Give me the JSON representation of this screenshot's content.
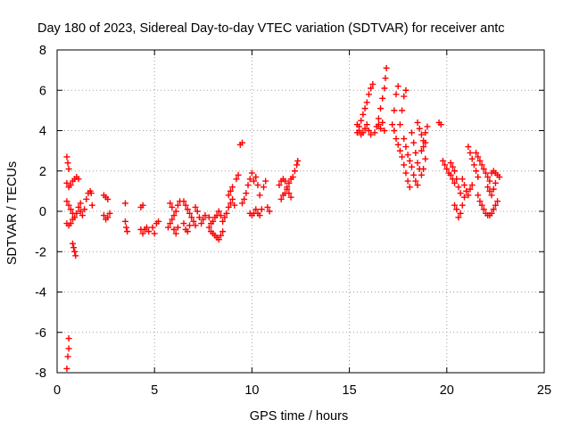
{
  "chart_data": {
    "type": "scatter",
    "title": "Day 180 of 2023, Sidereal Day-to-day VTEC variation (SDTVAR) for receiver antc",
    "xlabel": "GPS time / hours",
    "ylabel": "SDTVAR / TECUs",
    "xlim": [
      0,
      25
    ],
    "ylim": [
      -8,
      8
    ],
    "xticks": [
      0,
      5,
      10,
      15,
      20,
      25
    ],
    "yticks": [
      -8,
      -6,
      -4,
      -2,
      0,
      2,
      4,
      6,
      8
    ],
    "xtick_labels": [
      "0",
      "5",
      "10",
      "15",
      "20",
      "25"
    ],
    "ytick_labels": [
      "-8",
      "-6",
      "-4",
      "-2",
      "0",
      "2",
      "4",
      "6",
      "8"
    ],
    "grid": true,
    "marker": "+",
    "series": [
      {
        "name": "SDTVAR",
        "color": "#ff0000",
        "segments": [
          [
            0.5,
            -7.8
          ],
          [
            0.55,
            -7.2
          ],
          [
            0.6,
            -6.8
          ],
          [
            0.6,
            -6.3
          ],
          [
            0.5,
            2.7
          ],
          [
            0.55,
            2.4
          ],
          [
            0.6,
            2.1
          ],
          [
            0.5,
            1.4
          ],
          [
            0.6,
            1.2
          ],
          [
            0.7,
            1.3
          ],
          [
            0.8,
            1.5
          ],
          [
            0.9,
            1.6
          ],
          [
            1.0,
            1.7
          ],
          [
            1.1,
            1.6
          ],
          [
            0.5,
            0.5
          ],
          [
            0.6,
            0.3
          ],
          [
            0.7,
            0.1
          ],
          [
            0.8,
            -0.1
          ],
          [
            0.9,
            -0.3
          ],
          [
            1.0,
            -0.1
          ],
          [
            1.1,
            0.2
          ],
          [
            1.2,
            0.4
          ],
          [
            0.5,
            -0.6
          ],
          [
            0.6,
            -0.7
          ],
          [
            0.7,
            -0.6
          ],
          [
            0.8,
            -0.4
          ],
          [
            0.8,
            -1.6
          ],
          [
            0.85,
            -1.8
          ],
          [
            0.9,
            -2.0
          ],
          [
            0.95,
            -2.2
          ],
          [
            1.2,
            0.0
          ],
          [
            1.3,
            -0.2
          ],
          [
            1.4,
            0.1
          ],
          [
            1.5,
            0.6
          ],
          [
            1.6,
            0.9
          ],
          [
            1.7,
            1.0
          ],
          [
            1.75,
            0.9
          ],
          [
            1.8,
            0.3
          ],
          [
            2.4,
            0.8
          ],
          [
            2.5,
            0.7
          ],
          [
            2.6,
            0.6
          ],
          [
            2.4,
            -0.2
          ],
          [
            2.5,
            -0.4
          ],
          [
            2.6,
            -0.3
          ],
          [
            2.7,
            -0.1
          ],
          [
            3.5,
            0.4
          ],
          [
            3.5,
            -0.5
          ],
          [
            3.55,
            -0.8
          ],
          [
            3.6,
            -1.0
          ],
          [
            4.3,
            0.2
          ],
          [
            4.4,
            0.3
          ],
          [
            4.3,
            -0.9
          ],
          [
            4.4,
            -1.1
          ],
          [
            4.5,
            -0.9
          ],
          [
            4.6,
            -0.8
          ],
          [
            4.7,
            -1.0
          ],
          [
            4.9,
            -0.8
          ],
          [
            5.0,
            -1.1
          ],
          [
            5.1,
            -0.6
          ],
          [
            5.2,
            -0.5
          ],
          [
            5.7,
            -0.8
          ],
          [
            5.8,
            -0.6
          ],
          [
            5.9,
            -0.4
          ],
          [
            6.0,
            -0.2
          ],
          [
            6.1,
            0.0
          ],
          [
            6.2,
            0.3
          ],
          [
            6.3,
            0.5
          ],
          [
            5.8,
            0.4
          ],
          [
            5.9,
            0.2
          ],
          [
            6.0,
            -0.9
          ],
          [
            6.1,
            -1.1
          ],
          [
            6.2,
            -0.8
          ],
          [
            6.5,
            0.5
          ],
          [
            6.6,
            0.3
          ],
          [
            6.7,
            0.1
          ],
          [
            6.8,
            -0.1
          ],
          [
            6.9,
            -0.3
          ],
          [
            7.0,
            -0.5
          ],
          [
            7.1,
            -0.7
          ],
          [
            6.5,
            -0.6
          ],
          [
            6.6,
            -0.9
          ],
          [
            6.7,
            -1.0
          ],
          [
            6.8,
            -0.7
          ],
          [
            7.1,
            0.2
          ],
          [
            7.2,
            0.0
          ],
          [
            7.3,
            -0.3
          ],
          [
            7.4,
            -0.6
          ],
          [
            7.5,
            -0.4
          ],
          [
            7.6,
            -0.2
          ],
          [
            7.8,
            -0.8
          ],
          [
            7.9,
            -1.0
          ],
          [
            8.0,
            -1.1
          ],
          [
            8.1,
            -1.2
          ],
          [
            8.2,
            -1.3
          ],
          [
            8.3,
            -1.4
          ],
          [
            8.4,
            -1.2
          ],
          [
            8.5,
            -1.0
          ],
          [
            7.8,
            -0.3
          ],
          [
            7.9,
            -0.6
          ],
          [
            8.0,
            -0.5
          ],
          [
            8.1,
            -0.3
          ],
          [
            8.2,
            -0.2
          ],
          [
            8.3,
            0.0
          ],
          [
            8.4,
            -0.2
          ],
          [
            8.5,
            -0.5
          ],
          [
            8.6,
            -0.3
          ],
          [
            8.7,
            -0.1
          ],
          [
            8.8,
            0.2
          ],
          [
            8.9,
            0.4
          ],
          [
            9.0,
            0.6
          ],
          [
            9.1,
            0.3
          ],
          [
            8.8,
            0.8
          ],
          [
            8.9,
            1.0
          ],
          [
            9.0,
            1.2
          ],
          [
            9.2,
            1.6
          ],
          [
            9.3,
            1.8
          ],
          [
            9.4,
            3.3
          ],
          [
            9.5,
            3.4
          ],
          [
            9.5,
            0.4
          ],
          [
            9.6,
            0.6
          ],
          [
            9.7,
            0.9
          ],
          [
            9.8,
            1.3
          ],
          [
            9.9,
            1.6
          ],
          [
            10.0,
            1.9
          ],
          [
            9.9,
            -0.1
          ],
          [
            10.0,
            -0.2
          ],
          [
            10.1,
            -0.1
          ],
          [
            10.2,
            0.1
          ],
          [
            10.3,
            -0.1
          ],
          [
            10.4,
            -0.2
          ],
          [
            10.5,
            0.1
          ],
          [
            10.1,
            1.5
          ],
          [
            10.2,
            1.7
          ],
          [
            10.3,
            1.3
          ],
          [
            10.4,
            0.8
          ],
          [
            10.6,
            1.2
          ],
          [
            10.7,
            1.5
          ],
          [
            10.8,
            0.2
          ],
          [
            10.9,
            0.0
          ],
          [
            11.5,
            0.6
          ],
          [
            11.6,
            0.8
          ],
          [
            11.7,
            0.9
          ],
          [
            11.8,
            1.1
          ],
          [
            11.9,
            1.4
          ],
          [
            12.0,
            1.6
          ],
          [
            11.4,
            1.3
          ],
          [
            11.5,
            1.5
          ],
          [
            11.6,
            1.6
          ],
          [
            11.7,
            1.5
          ],
          [
            11.8,
            1.2
          ],
          [
            11.9,
            0.9
          ],
          [
            12.0,
            0.7
          ],
          [
            12.1,
            1.7
          ],
          [
            12.2,
            2.0
          ],
          [
            12.3,
            2.3
          ],
          [
            12.35,
            2.5
          ],
          [
            15.4,
            3.9
          ],
          [
            15.5,
            4.2
          ],
          [
            15.6,
            4.5
          ],
          [
            15.7,
            4.8
          ],
          [
            15.8,
            5.1
          ],
          [
            15.9,
            5.4
          ],
          [
            16.0,
            5.8
          ],
          [
            16.1,
            6.1
          ],
          [
            16.2,
            6.3
          ],
          [
            15.4,
            4.3
          ],
          [
            15.5,
            4.0
          ],
          [
            15.6,
            3.8
          ],
          [
            15.7,
            3.9
          ],
          [
            15.8,
            4.1
          ],
          [
            15.9,
            4.3
          ],
          [
            16.0,
            4.0
          ],
          [
            16.1,
            3.8
          ],
          [
            16.3,
            3.9
          ],
          [
            16.4,
            4.2
          ],
          [
            16.5,
            4.6
          ],
          [
            16.6,
            5.1
          ],
          [
            16.7,
            5.6
          ],
          [
            16.8,
            6.1
          ],
          [
            16.85,
            6.6
          ],
          [
            16.9,
            7.1
          ],
          [
            16.5,
            4.3
          ],
          [
            16.6,
            4.1
          ],
          [
            16.7,
            4.4
          ],
          [
            16.8,
            4.0
          ],
          [
            17.2,
            4.3
          ],
          [
            17.3,
            5.0
          ],
          [
            17.4,
            5.8
          ],
          [
            17.5,
            6.2
          ],
          [
            17.3,
            4.0
          ],
          [
            17.4,
            3.6
          ],
          [
            17.5,
            3.3
          ],
          [
            17.6,
            3.0
          ],
          [
            17.7,
            2.7
          ],
          [
            17.8,
            2.3
          ],
          [
            17.9,
            1.9
          ],
          [
            18.0,
            1.5
          ],
          [
            18.1,
            1.2
          ],
          [
            17.6,
            4.3
          ],
          [
            17.7,
            5.0
          ],
          [
            17.8,
            5.7
          ],
          [
            17.9,
            6.0
          ],
          [
            17.8,
            3.6
          ],
          [
            17.9,
            3.2
          ],
          [
            18.0,
            2.8
          ],
          [
            18.1,
            2.5
          ],
          [
            18.2,
            2.2
          ],
          [
            18.3,
            1.8
          ],
          [
            18.4,
            1.5
          ],
          [
            18.5,
            1.3
          ],
          [
            18.2,
            3.9
          ],
          [
            18.3,
            3.4
          ],
          [
            18.4,
            2.9
          ],
          [
            18.5,
            2.4
          ],
          [
            18.6,
            2.1
          ],
          [
            18.7,
            1.8
          ],
          [
            18.8,
            2.1
          ],
          [
            18.9,
            2.6
          ],
          [
            18.5,
            4.4
          ],
          [
            18.6,
            4.1
          ],
          [
            18.7,
            3.8
          ],
          [
            18.8,
            3.5
          ],
          [
            18.9,
            3.9
          ],
          [
            19.0,
            4.2
          ],
          [
            18.7,
            3.0
          ],
          [
            18.8,
            3.2
          ],
          [
            18.9,
            3.4
          ],
          [
            19.6,
            4.4
          ],
          [
            19.7,
            4.3
          ],
          [
            19.8,
            2.5
          ],
          [
            19.9,
            2.3
          ],
          [
            20.0,
            2.1
          ],
          [
            20.1,
            1.9
          ],
          [
            20.2,
            1.8
          ],
          [
            20.3,
            1.6
          ],
          [
            20.4,
            1.4
          ],
          [
            20.2,
            2.4
          ],
          [
            20.3,
            2.2
          ],
          [
            20.4,
            2.0
          ],
          [
            20.5,
            1.6
          ],
          [
            20.6,
            1.2
          ],
          [
            20.7,
            0.9
          ],
          [
            20.4,
            0.3
          ],
          [
            20.5,
            0.1
          ],
          [
            20.6,
            -0.3
          ],
          [
            20.7,
            -0.1
          ],
          [
            20.8,
            0.3
          ],
          [
            20.9,
            0.7
          ],
          [
            20.8,
            1.6
          ],
          [
            20.9,
            1.3
          ],
          [
            21.0,
            1.0
          ],
          [
            21.1,
            0.8
          ],
          [
            21.2,
            1.1
          ],
          [
            21.3,
            1.3
          ],
          [
            21.1,
            3.2
          ],
          [
            21.2,
            2.9
          ],
          [
            21.3,
            2.6
          ],
          [
            21.4,
            2.3
          ],
          [
            21.5,
            2.0
          ],
          [
            21.6,
            1.7
          ],
          [
            21.5,
            2.9
          ],
          [
            21.6,
            2.7
          ],
          [
            21.7,
            2.5
          ],
          [
            21.8,
            2.3
          ],
          [
            21.9,
            2.1
          ],
          [
            22.0,
            1.9
          ],
          [
            22.1,
            1.7
          ],
          [
            22.2,
            1.5
          ],
          [
            21.6,
            0.8
          ],
          [
            21.7,
            0.5
          ],
          [
            21.8,
            0.3
          ],
          [
            21.9,
            0.1
          ],
          [
            22.0,
            -0.1
          ],
          [
            22.1,
            -0.2
          ],
          [
            22.2,
            -0.2
          ],
          [
            22.3,
            -0.1
          ],
          [
            22.4,
            0.1
          ],
          [
            22.5,
            0.3
          ],
          [
            22.6,
            0.5
          ],
          [
            22.1,
            1.2
          ],
          [
            22.2,
            1.0
          ],
          [
            22.3,
            0.8
          ],
          [
            22.4,
            1.1
          ],
          [
            22.5,
            1.4
          ],
          [
            22.3,
            1.9
          ],
          [
            22.4,
            2.0
          ],
          [
            22.5,
            1.9
          ],
          [
            22.6,
            1.8
          ],
          [
            22.7,
            1.7
          ]
        ]
      }
    ]
  }
}
